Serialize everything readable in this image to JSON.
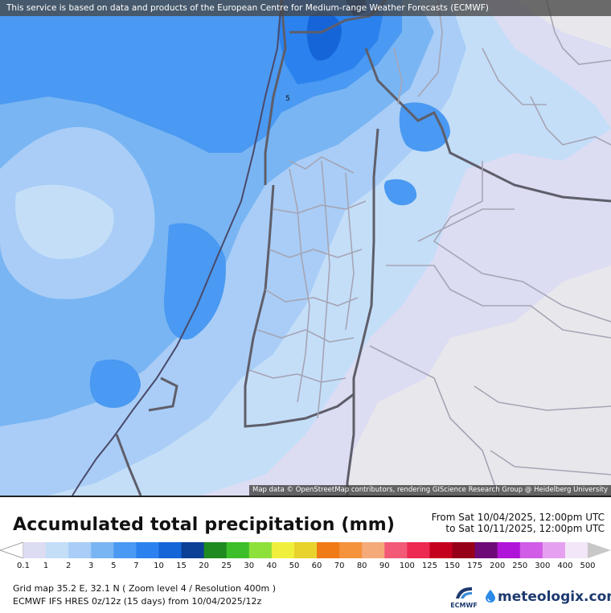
{
  "map": {
    "attribution_top": "This service is based on data and products of the European Centre for Medium-range Weather Forecasts (ECMWF)",
    "attribution_bottom": "Map data © OpenStreetMap contributors, rendering GIScience Research Group @ Heidelberg University",
    "contour_label": "5"
  },
  "legend": {
    "title": "Accumulated total precipitation (mm)",
    "period_from": "From Sat 10/04/2025, 12:00pm UTC",
    "period_to": "to Sat 10/11/2025, 12:00pm UTC",
    "scale": [
      {
        "label": "0.1",
        "color": "#dcdcf3"
      },
      {
        "label": "1",
        "color": "#c4def8"
      },
      {
        "label": "2",
        "color": "#a9cdf6"
      },
      {
        "label": "3",
        "color": "#79b5f3"
      },
      {
        "label": "5",
        "color": "#4a99f2"
      },
      {
        "label": "7",
        "color": "#2b82ef"
      },
      {
        "label": "10",
        "color": "#1565d8"
      },
      {
        "label": "15",
        "color": "#0c3f96"
      },
      {
        "label": "20",
        "color": "#1f8a1f"
      },
      {
        "label": "25",
        "color": "#3cbf2a"
      },
      {
        "label": "30",
        "color": "#8ee03b"
      },
      {
        "label": "40",
        "color": "#f0f03c"
      },
      {
        "label": "50",
        "color": "#e8d22c"
      },
      {
        "label": "60",
        "color": "#f07a16"
      },
      {
        "label": "70",
        "color": "#f5923c"
      },
      {
        "label": "80",
        "color": "#f5aa7a"
      },
      {
        "label": "90",
        "color": "#f25a78"
      },
      {
        "label": "100",
        "color": "#ec2a52"
      },
      {
        "label": "125",
        "color": "#c4001e"
      },
      {
        "label": "150",
        "color": "#960018"
      },
      {
        "label": "175",
        "color": "#6e0a78"
      },
      {
        "label": "200",
        "color": "#b014d8"
      },
      {
        "label": "250",
        "color": "#d05ce8"
      },
      {
        "label": "300",
        "color": "#e6a0f0"
      },
      {
        "label": "400",
        "color": "#f2e6f8"
      },
      {
        "label": "500",
        "color": "#c8c8c8"
      }
    ],
    "info_line1": "Grid map 35.2 E, 32.1 N ( Zoom level 4 / Resolution 400m )",
    "info_line2": "ECMWF IFS HRES 0z/12z (15 days)  from  10/04/2025/12z",
    "ecmwf_label": "ECMWF",
    "brand": "meteologix.com"
  }
}
